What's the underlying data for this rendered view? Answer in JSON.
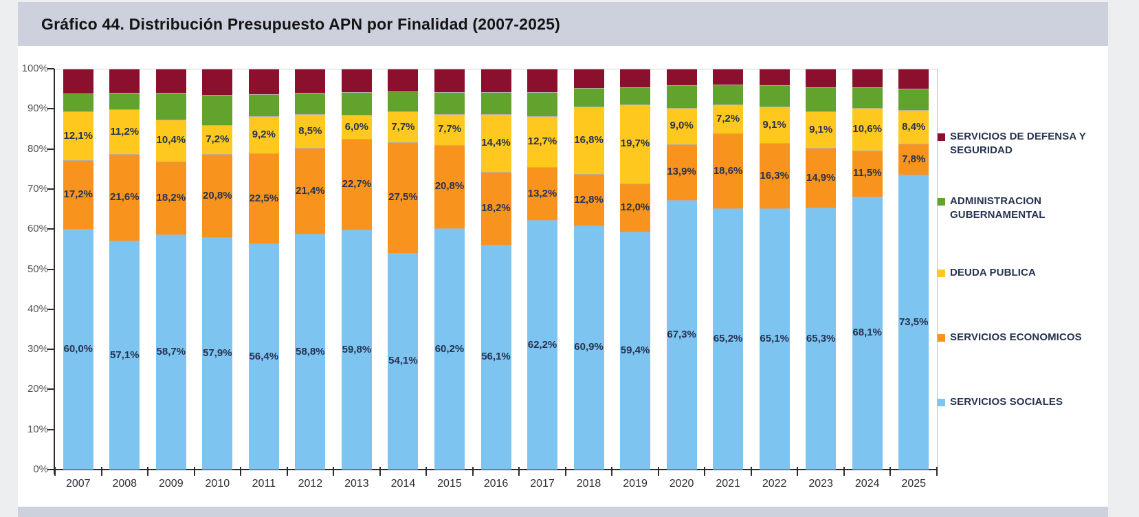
{
  "page": {
    "title": "Gráfico 44. Distribución Presupuesto APN por Finalidad (2007-2025)"
  },
  "chart_data": {
    "type": "bar",
    "subtype": "stacked-100-percent",
    "title": "Gráfico 44. Distribución Presupuesto APN por Finalidad (2007-2025)",
    "xlabel": "",
    "ylabel": "",
    "grid": "top-line-only",
    "legend_position": "right",
    "y_axis": {
      "min": 0,
      "max": 100,
      "step": 10,
      "suffix": "%"
    },
    "categories": [
      "2007",
      "2008",
      "2009",
      "2010",
      "2011",
      "2012",
      "2013",
      "2014",
      "2015",
      "2016",
      "2017",
      "2018",
      "2019",
      "2020",
      "2021",
      "2022",
      "2023",
      "2024",
      "2025"
    ],
    "series": [
      {
        "name": "SERVICIOS SOCIALES",
        "color": "#7EC4F0",
        "values": [
          60.0,
          57.1,
          58.7,
          57.9,
          56.4,
          58.8,
          59.8,
          54.1,
          60.2,
          56.1,
          62.2,
          60.9,
          59.4,
          67.3,
          65.2,
          65.1,
          65.3,
          68.1,
          73.5
        ],
        "labels": [
          "60,0%",
          "57,1%",
          "58,7%",
          "57,9%",
          "56,4%",
          "58,8%",
          "59,8%",
          "54,1%",
          "60,2%",
          "56,1%",
          "62,2%",
          "60,9%",
          "59,4%",
          "67,3%",
          "65,2%",
          "65,1%",
          "65,3%",
          "68,1%",
          "73,5%"
        ]
      },
      {
        "name": "SERVICIOS ECONOMICOS",
        "color": "#F8941D",
        "values": [
          17.2,
          21.6,
          18.2,
          20.8,
          22.5,
          21.4,
          22.7,
          27.5,
          20.8,
          18.2,
          13.2,
          12.8,
          12.0,
          13.9,
          18.6,
          16.3,
          14.9,
          11.5,
          7.8
        ],
        "labels": [
          "17,2%",
          "21,6%",
          "18,2%",
          "20,8%",
          "22,5%",
          "21,4%",
          "22,7%",
          "27,5%",
          "20,8%",
          "18,2%",
          "13,2%",
          "12,8%",
          "12,0%",
          "13,9%",
          "18,6%",
          "16,3%",
          "14,9%",
          "11,5%",
          "7,8%"
        ]
      },
      {
        "name": "DEUDA PUBLICA",
        "color": "#FFC81E",
        "values": [
          12.1,
          11.2,
          10.4,
          7.2,
          9.2,
          8.5,
          6.0,
          7.7,
          7.7,
          14.4,
          12.7,
          16.8,
          19.7,
          9.0,
          7.2,
          9.1,
          9.1,
          10.6,
          8.4
        ],
        "labels": [
          "12,1%",
          "11,2%",
          "10,4%",
          "7,2%",
          "9,2%",
          "8,5%",
          "6,0%",
          "7,7%",
          "7,7%",
          "14,4%",
          "12,7%",
          "16,8%",
          "19,7%",
          "9,0%",
          "7,2%",
          "9,1%",
          "9,1%",
          "10,6%",
          "8,4%"
        ]
      },
      {
        "name": "ADMINISTRACION GUBERNAMENTAL",
        "color": "#61A32D",
        "estimated": true,
        "values": [
          4.6,
          4.1,
          6.7,
          7.6,
          5.5,
          5.3,
          5.6,
          5.0,
          5.5,
          5.5,
          6.0,
          4.7,
          4.3,
          5.6,
          5.0,
          5.3,
          6.0,
          5.2,
          5.4
        ],
        "labels": null
      },
      {
        "name": "SERVICIOS DE DEFENSA Y SEGURIDAD",
        "color": "#8B102D",
        "estimated": true,
        "values": [
          6.1,
          6.0,
          6.0,
          6.5,
          6.4,
          6.0,
          5.9,
          5.7,
          5.8,
          5.8,
          5.9,
          4.8,
          4.6,
          4.2,
          4.0,
          4.2,
          4.7,
          4.6,
          4.9
        ],
        "labels": null
      }
    ],
    "legend_order": [
      "SERVICIOS DE DEFENSA Y SEGURIDAD",
      "ADMINISTRACION GUBERNAMENTAL",
      "DEUDA PUBLICA",
      "SERVICIOS ECONOMICOS",
      "SERVICIOS SOCIALES"
    ]
  },
  "colors": {
    "title_band": "#cdd1dd",
    "page_background": "#eceef0",
    "chart_background": "#ffffff",
    "axis": "#2b2b2b",
    "data_label_text": "#26324f"
  }
}
